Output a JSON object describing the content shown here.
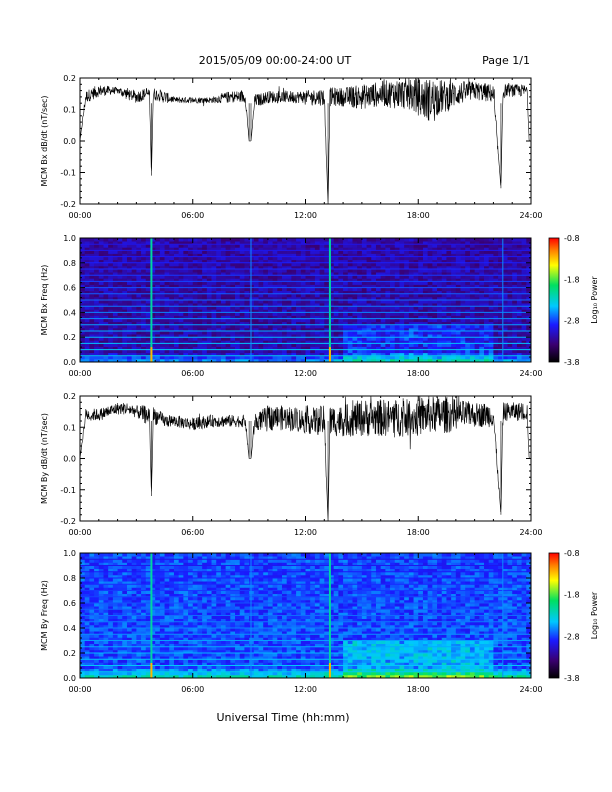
{
  "header": {
    "title": "2015/05/09  00:00-24:00 UT",
    "page": "Page 1/1"
  },
  "footer": {
    "xlabel": "Universal Time (hh:mm)"
  },
  "colors": {
    "trace": "#000000",
    "background": "#ffffff",
    "colormap": [
      "#000000",
      "#3a0070",
      "#1a1aff",
      "#00c8ff",
      "#00e060",
      "#ffff00",
      "#ff8000",
      "#ff0000"
    ]
  },
  "chart_data": [
    {
      "type": "line",
      "ylabel": "MCM Bx dB/dt (nT/sec)",
      "xlim": [
        0,
        24
      ],
      "ylim": [
        -0.2,
        0.2
      ],
      "xticks": [
        "00:00",
        "06:00",
        "12:00",
        "18:00",
        "24:00"
      ],
      "yticks": [
        "-0.2",
        "-0.1",
        "0.0",
        "0.1",
        "0.2"
      ],
      "series": [
        {
          "x": [
            0,
            0.3,
            1,
            2,
            2.5,
            3,
            3.5,
            3.7,
            3.8,
            3.9,
            4.5,
            5,
            6,
            7,
            8,
            8.8,
            9.0,
            9.1,
            9.3,
            9.5,
            10,
            11,
            12,
            13,
            13.2,
            13.3,
            13.4,
            14,
            15,
            16,
            17,
            17.5,
            18,
            18.5,
            19,
            19.5,
            20,
            21,
            22,
            22.4,
            22.5,
            22.6,
            23,
            23.7,
            23.8,
            23.9,
            24
          ],
          "center": [
            0.0,
            0.14,
            0.16,
            0.16,
            0.15,
            0.14,
            0.15,
            0.15,
            -0.11,
            0.15,
            0.14,
            0.13,
            0.13,
            0.13,
            0.14,
            0.14,
            0.0,
            0.0,
            0.13,
            0.13,
            0.14,
            0.14,
            0.14,
            0.14,
            -0.2,
            0.14,
            0.14,
            0.14,
            0.14,
            0.15,
            0.15,
            0.15,
            0.14,
            0.13,
            0.14,
            0.14,
            0.15,
            0.16,
            0.15,
            -0.15,
            0.15,
            0.16,
            0.16,
            0.16,
            0.16,
            0.0,
            0.0
          ],
          "amplitude": [
            0.0,
            0.02,
            0.02,
            0.01,
            0.02,
            0.02,
            0.02,
            0.02,
            0.0,
            0.02,
            0.02,
            0.01,
            0.01,
            0.01,
            0.02,
            0.02,
            0.0,
            0.0,
            0.02,
            0.02,
            0.02,
            0.02,
            0.02,
            0.03,
            0.0,
            0.03,
            0.03,
            0.03,
            0.04,
            0.04,
            0.05,
            0.05,
            0.06,
            0.07,
            0.06,
            0.05,
            0.04,
            0.03,
            0.03,
            0.0,
            0.03,
            0.02,
            0.02,
            0.02,
            0.02,
            0.0,
            0.0
          ]
        }
      ]
    },
    {
      "type": "heatmap",
      "ylabel": "MCM Bx Freq (Hz)",
      "xlim": [
        0,
        24
      ],
      "ylim": [
        0.0,
        1.0
      ],
      "xticks": [
        "00:00",
        "06:00",
        "12:00",
        "18:00",
        "24:00"
      ],
      "yticks": [
        "0.0",
        "0.2",
        "0.4",
        "0.6",
        "0.8",
        "1.0"
      ],
      "colorbar": {
        "label": "Log₁₀ Power",
        "range": [
          -3.8,
          -0.8
        ],
        "ticks": [
          "-0.8",
          "-1.8",
          "-2.8",
          "-3.8"
        ]
      },
      "harmonic_lines_hz": [
        0.05,
        0.1,
        0.15,
        0.2,
        0.25,
        0.3,
        0.35,
        0.4,
        0.45,
        0.5,
        0.55,
        0.6,
        0.65,
        0.7,
        0.75,
        0.8,
        0.85,
        0.9,
        0.95,
        1.0
      ],
      "vertical_events_hours": [
        3.8,
        13.3,
        9.1,
        22.5
      ]
    },
    {
      "type": "line",
      "ylabel": "MCM By dB/dt (nT/sec)",
      "xlim": [
        0,
        24
      ],
      "ylim": [
        -0.2,
        0.2
      ],
      "xticks": [
        "00:00",
        "06:00",
        "12:00",
        "18:00",
        "24:00"
      ],
      "yticks": [
        "-0.2",
        "-0.1",
        "0.0",
        "0.1",
        "0.2"
      ],
      "series": [
        {
          "x": [
            0,
            0.3,
            1,
            2,
            2.5,
            3,
            3.5,
            3.7,
            3.8,
            3.9,
            4.5,
            5,
            6,
            7,
            8,
            8.8,
            9.0,
            9.1,
            9.3,
            9.5,
            10,
            11,
            12,
            13,
            13.2,
            13.3,
            13.4,
            14,
            15,
            16,
            17,
            17.5,
            18,
            18.5,
            19,
            19.5,
            20,
            21,
            22,
            22.4,
            22.5,
            22.6,
            23,
            23.7,
            23.8,
            23.9,
            24
          ],
          "center": [
            0.0,
            0.14,
            0.14,
            0.16,
            0.16,
            0.15,
            0.14,
            0.14,
            -0.12,
            0.14,
            0.12,
            0.12,
            0.11,
            0.12,
            0.12,
            0.12,
            0.0,
            0.0,
            0.12,
            0.12,
            0.13,
            0.13,
            0.12,
            0.12,
            -0.2,
            0.12,
            0.12,
            0.12,
            0.13,
            0.13,
            0.13,
            0.13,
            0.13,
            0.14,
            0.14,
            0.14,
            0.14,
            0.14,
            0.14,
            -0.18,
            0.14,
            0.15,
            0.15,
            0.15,
            0.15,
            0.0,
            0.0
          ],
          "amplitude": [
            0.0,
            0.02,
            0.02,
            0.02,
            0.02,
            0.02,
            0.03,
            0.03,
            0.0,
            0.03,
            0.02,
            0.02,
            0.02,
            0.02,
            0.02,
            0.02,
            0.0,
            0.0,
            0.03,
            0.03,
            0.04,
            0.04,
            0.04,
            0.05,
            0.0,
            0.05,
            0.05,
            0.05,
            0.06,
            0.06,
            0.06,
            0.06,
            0.06,
            0.06,
            0.06,
            0.06,
            0.05,
            0.04,
            0.04,
            0.0,
            0.04,
            0.03,
            0.03,
            0.03,
            0.03,
            0.0,
            0.0
          ]
        }
      ]
    },
    {
      "type": "heatmap",
      "ylabel": "MCM By Freq (Hz)",
      "xlim": [
        0,
        24
      ],
      "ylim": [
        0.0,
        1.0
      ],
      "xticks": [
        "00:00",
        "06:00",
        "12:00",
        "18:00",
        "24:00"
      ],
      "yticks": [
        "0.0",
        "0.2",
        "0.4",
        "0.6",
        "0.8",
        "1.0"
      ],
      "colorbar": {
        "label": "Log₁₀ Power",
        "range": [
          -3.8,
          -0.8
        ],
        "ticks": [
          "-0.8",
          "-1.8",
          "-2.8",
          "-3.8"
        ]
      },
      "harmonic_lines_hz": [
        0.05,
        0.1,
        0.15,
        0.2,
        0.25,
        0.3,
        0.35,
        0.4,
        0.45,
        0.5,
        0.55,
        0.6,
        0.65,
        0.7,
        0.75,
        0.8,
        0.85,
        0.9,
        0.95,
        1.0
      ],
      "vertical_events_hours": [
        3.8,
        13.3,
        9.1,
        22.5
      ]
    }
  ]
}
